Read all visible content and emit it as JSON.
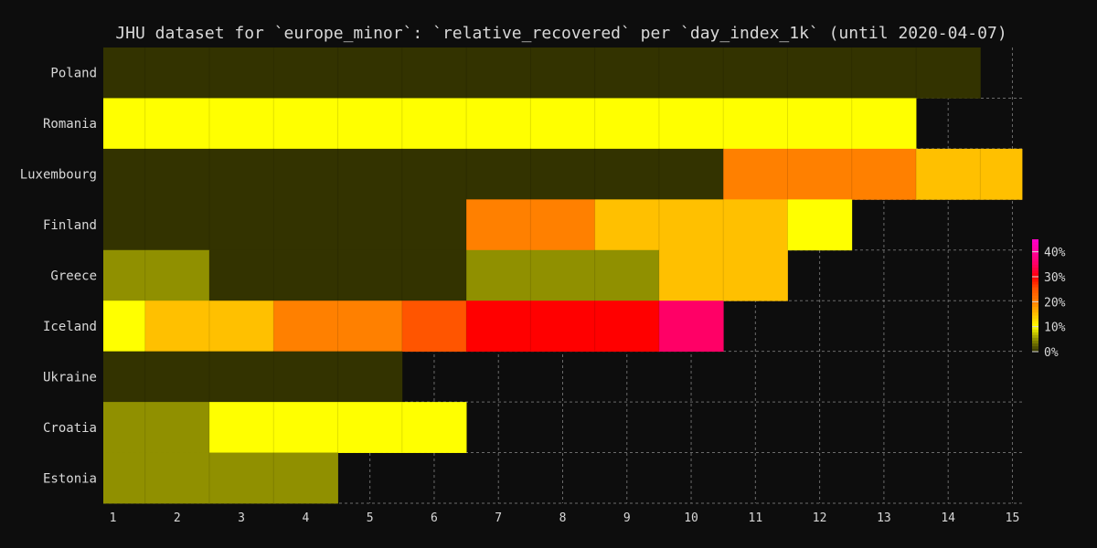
{
  "chart_data": {
    "type": "heatmap",
    "title": "JHU dataset for `europe_minor`: `relative_recovered` per `day_index_1k` (until 2020-04-07)",
    "xlabel": "",
    "ylabel": "",
    "x": [
      1,
      2,
      3,
      4,
      5,
      6,
      7,
      8,
      9,
      10,
      11,
      12,
      13,
      14,
      15
    ],
    "x_tick_labels": [
      "1",
      "2",
      "3",
      "4",
      "5",
      "6",
      "7",
      "8",
      "9",
      "10",
      "11",
      "12",
      "13",
      "14",
      "15"
    ],
    "xlim": [
      0.85,
      15.15
    ],
    "grid": true,
    "colorbar": {
      "range": [
        0,
        45
      ],
      "tick_labels": [
        "0%",
        "10%",
        "20%",
        "30%",
        "40%"
      ],
      "tick_values": [
        0,
        10,
        20,
        30,
        40
      ],
      "stops": [
        {
          "value": 0,
          "color": "#333300"
        },
        {
          "value": 5,
          "color": "#909000"
        },
        {
          "value": 10,
          "color": "#ffff00"
        },
        {
          "value": 15,
          "color": "#ffc000"
        },
        {
          "value": 20,
          "color": "#ff8000"
        },
        {
          "value": 25,
          "color": "#ff5500"
        },
        {
          "value": 30,
          "color": "#ff0000"
        },
        {
          "value": 35,
          "color": "#ff0066"
        },
        {
          "value": 45,
          "color": "#ff00cc"
        }
      ]
    },
    "rows": [
      {
        "name": "Poland",
        "values": [
          0,
          0,
          0,
          0,
          0,
          0,
          0,
          0,
          0,
          0,
          0,
          0,
          0,
          0
        ]
      },
      {
        "name": "Romania",
        "values": [
          10,
          10,
          10,
          10,
          10,
          10,
          10,
          10,
          10,
          10,
          10,
          10,
          10
        ]
      },
      {
        "name": "Luxembourg",
        "values": [
          0,
          0,
          0,
          0,
          0,
          0,
          0,
          0,
          0,
          0,
          20,
          20,
          20,
          15,
          15
        ]
      },
      {
        "name": "Finland",
        "values": [
          0,
          0,
          0,
          0,
          0,
          0,
          20,
          20,
          15,
          15,
          15,
          10
        ]
      },
      {
        "name": "Greece",
        "values": [
          5,
          5,
          0,
          0,
          0,
          0,
          5,
          5,
          5,
          15,
          15
        ]
      },
      {
        "name": "Iceland",
        "values": [
          10,
          15,
          15,
          20,
          20,
          25,
          30,
          30,
          30,
          35
        ]
      },
      {
        "name": "Ukraine",
        "values": [
          0,
          0,
          0,
          0,
          0
        ]
      },
      {
        "name": "Croatia",
        "values": [
          5,
          5,
          10,
          10,
          10,
          10
        ]
      },
      {
        "name": "Estonia",
        "values": [
          5,
          5,
          5,
          5
        ]
      }
    ]
  }
}
